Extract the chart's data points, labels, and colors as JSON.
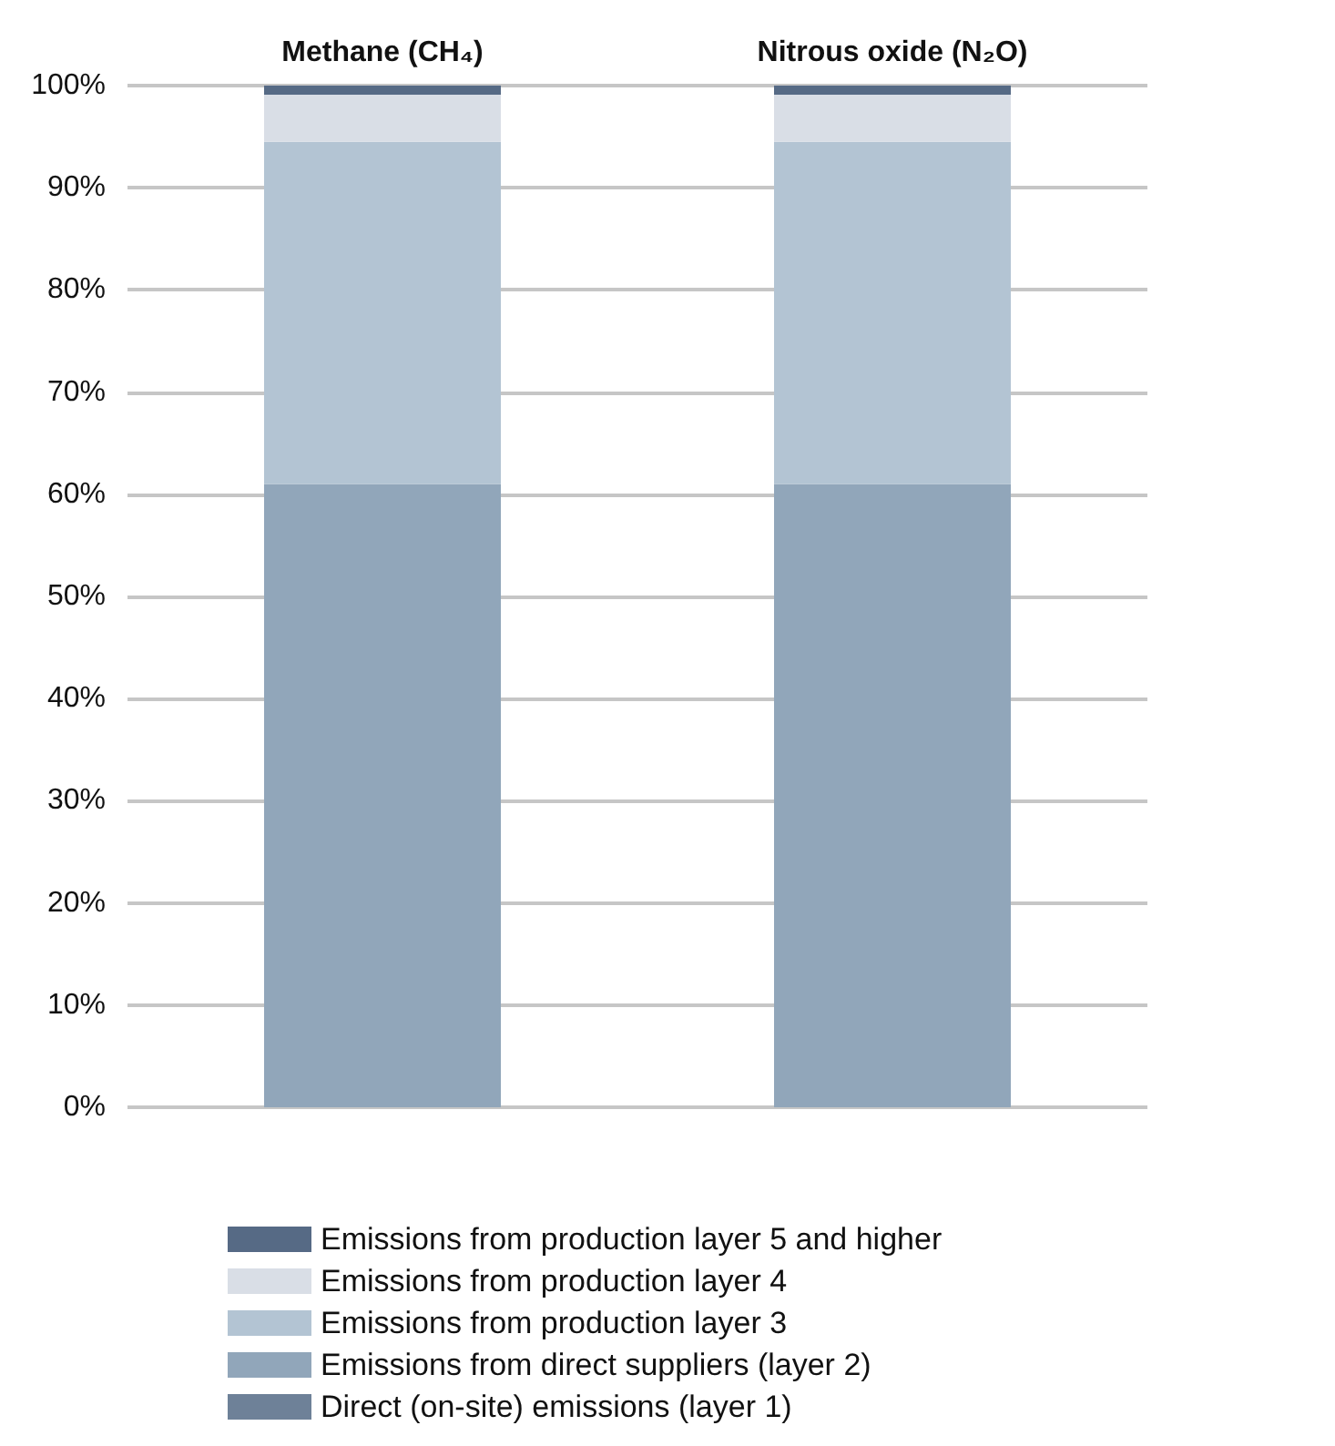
{
  "chart_data": {
    "type": "bar",
    "stacked": true,
    "categories": [
      "Methane (CH₄)",
      "Nitrous oxide (N₂O)"
    ],
    "series": [
      {
        "name": "Direct (on-site) emissions (layer 1)",
        "color": "#6e8198",
        "values": [
          0,
          0
        ]
      },
      {
        "name": "Emissions from direct suppliers (layer 2)",
        "color": "#91a6ba",
        "values": [
          61,
          61
        ]
      },
      {
        "name": "Emissions from production layer 3",
        "color": "#b3c4d3",
        "values": [
          33.5,
          33.5
        ]
      },
      {
        "name": "Emissions from production layer 4",
        "color": "#d9dee6",
        "values": [
          4.6,
          4.6
        ]
      },
      {
        "name": "Emissions from production layer 5 and higher",
        "color": "#566a85",
        "values": [
          0.9,
          0.9
        ]
      }
    ],
    "ylim": [
      0,
      100
    ],
    "yticks": [
      {
        "value": 0,
        "label": "0%"
      },
      {
        "value": 10,
        "label": "10%"
      },
      {
        "value": 20,
        "label": "20%"
      },
      {
        "value": 30,
        "label": "30%"
      },
      {
        "value": 40,
        "label": "40%"
      },
      {
        "value": 50,
        "label": "50%"
      },
      {
        "value": 60,
        "label": "60%"
      },
      {
        "value": 70,
        "label": "70%"
      },
      {
        "value": 80,
        "label": "80%"
      },
      {
        "value": 90,
        "label": "90%"
      },
      {
        "value": 100,
        "label": "100%"
      }
    ],
    "grid": "y",
    "legend": "bottom"
  }
}
